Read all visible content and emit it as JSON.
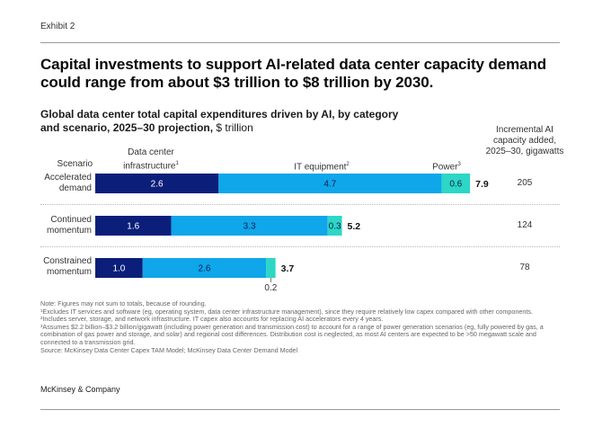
{
  "exhibit": "Exhibit 2",
  "headline": "Capital investments to support AI-related data center capacity demand could range from about $3 trillion to $8 trillion by 2030.",
  "subtitle_bold": "Global data center total capital expenditures driven by AI, by category and scenario, 2025–30 projection,",
  "subtitle_unit": " $ trillion",
  "capacity_header": "Incremental AI capacity added, 2025–30, gigawatts",
  "scenario_header": "Scenario",
  "column_labels": {
    "infra_line1": "Data center",
    "infra_line2": "infrastructure",
    "infra_sup": "1",
    "it": "IT equipment",
    "it_sup": "2",
    "power": "Power",
    "power_sup": "3"
  },
  "rows": [
    {
      "label_line1": "Accelerated",
      "label_line2": "demand",
      "capacity": "205"
    },
    {
      "label_line1": "Continued",
      "label_line2": "momentum",
      "capacity": "124"
    },
    {
      "label_line1": "Constrained",
      "label_line2": "momentum",
      "capacity": "78"
    }
  ],
  "chart_data": {
    "type": "bar",
    "orientation": "horizontal",
    "stacked": true,
    "categories": [
      "Accelerated demand",
      "Continued momentum",
      "Constrained momentum"
    ],
    "series": [
      {
        "name": "Data center infrastructure",
        "values": [
          2.6,
          1.6,
          1.0
        ],
        "labels": [
          "2.6",
          "1.6",
          "1.0"
        ],
        "color": "#0b1f7a"
      },
      {
        "name": "IT equipment",
        "values": [
          4.7,
          3.3,
          2.6
        ],
        "labels": [
          "4.7",
          "3.3",
          "2.6"
        ],
        "color": "#0fa6ea"
      },
      {
        "name": "Power",
        "values": [
          0.6,
          0.3,
          0.2
        ],
        "labels": [
          "0.6",
          "0.3",
          "0.2"
        ],
        "color": "#2dd6c6"
      }
    ],
    "totals": [
      7.9,
      5.2,
      3.7
    ],
    "total_labels": [
      "7.9",
      "5.2",
      "3.7"
    ],
    "capacity_gw": [
      205,
      124,
      78
    ]
  },
  "notes": [
    "Note: Figures may not sum to totals, because of rounding.",
    "¹Excludes IT services and software (eg, operating system, data center infrastructure management), since they require relatively low capex compared with other components.",
    "²Includes server, storage, and network infrastructure. IT capex also accounts for replacing AI accelerators every 4 years.",
    "³Assumes $2.2 billion–$3.2 billion/gigawatt (including power generation and transmission cost) to account for a range of power generation scenarios (eg, fully powered by gas, a combination of gas power and storage, and solar) and regional cost differences. Distribution cost is neglected, as most AI centers are expected to be >50 megawatt scale and connected to a transmission grid.",
    "Source: McKinsey Data Center Capex TAM Model; McKinsey Data Center Demand Model"
  ],
  "brand": "McKinsey & Company"
}
